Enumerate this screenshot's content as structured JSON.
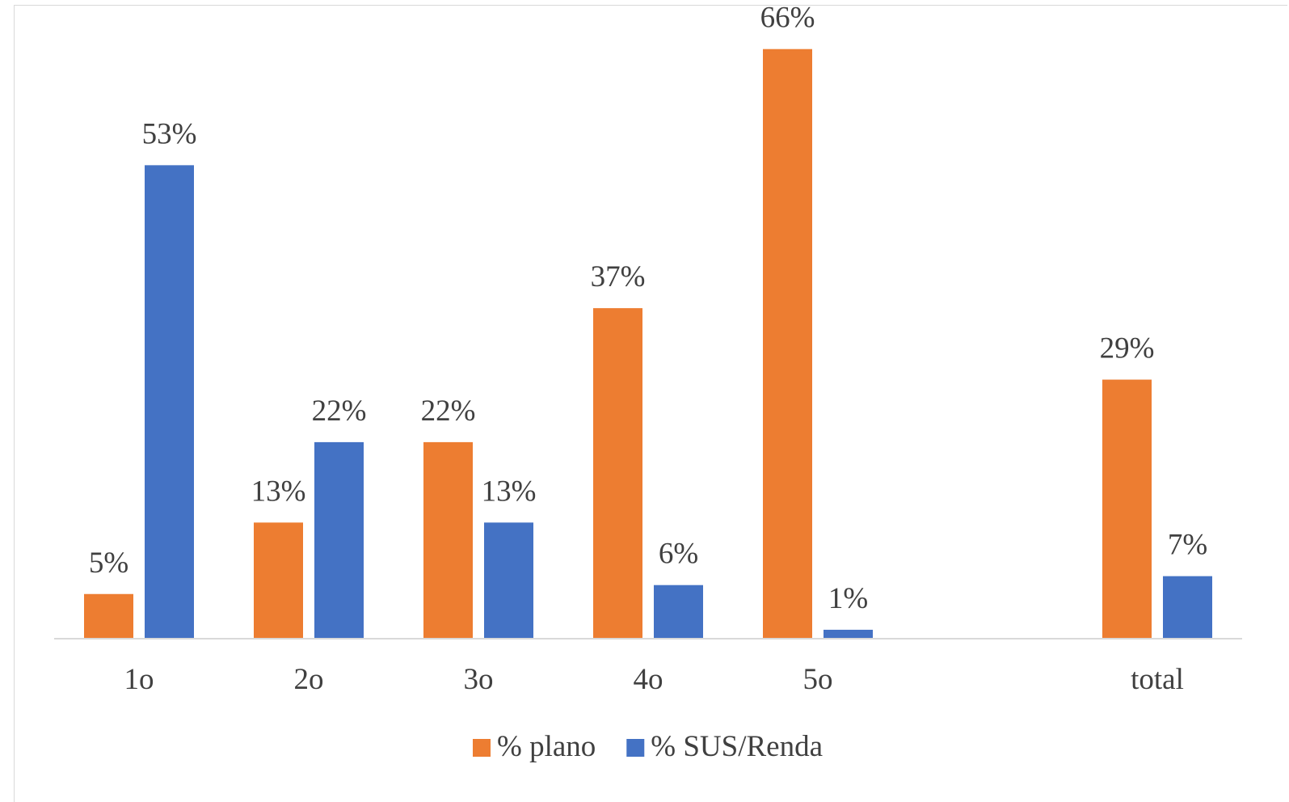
{
  "chart_data": {
    "type": "bar",
    "title": "",
    "xlabel": "",
    "ylabel": "",
    "categories": [
      "1o",
      "2o",
      "3o",
      "4o",
      "5o",
      "",
      "total"
    ],
    "series": [
      {
        "name": "% plano",
        "color": "#ED7D31",
        "values": [
          5,
          13,
          22,
          37,
          66,
          null,
          29
        ],
        "labels": [
          "5%",
          "13%",
          "22%",
          "37%",
          "66%",
          "",
          "29%"
        ]
      },
      {
        "name": "% SUS/Renda",
        "color": "#4472C4",
        "values": [
          53,
          22,
          13,
          6,
          1,
          null,
          7
        ],
        "labels": [
          "53%",
          "22%",
          "13%",
          "6%",
          "1%",
          "",
          "7%"
        ]
      }
    ],
    "ylim": [
      0,
      70
    ],
    "grid": false,
    "legend_position": "bottom"
  }
}
